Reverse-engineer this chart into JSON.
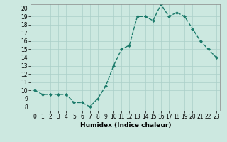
{
  "x": [
    0,
    1,
    2,
    3,
    4,
    5,
    6,
    7,
    8,
    9,
    10,
    11,
    12,
    13,
    14,
    15,
    16,
    17,
    18,
    19,
    20,
    21,
    22,
    23
  ],
  "y": [
    10,
    9.5,
    9.5,
    9.5,
    9.5,
    8.5,
    8.5,
    8.0,
    9.0,
    10.5,
    13.0,
    15.0,
    15.5,
    19.0,
    19.0,
    18.5,
    20.5,
    19.0,
    19.5,
    19.0,
    17.5,
    16.0,
    15.0,
    14.0
  ],
  "line_color": "#1a7a6a",
  "marker": "D",
  "marker_size": 2,
  "line_width": 1.0,
  "bg_color": "#cce8e0",
  "grid_color": "#aacfc8",
  "xlabel": "Humidex (Indice chaleur)",
  "xlim": [
    -0.5,
    23.5
  ],
  "ylim": [
    7.5,
    20.5
  ],
  "xticks": [
    0,
    1,
    2,
    3,
    4,
    5,
    6,
    7,
    8,
    9,
    10,
    11,
    12,
    13,
    14,
    15,
    16,
    17,
    18,
    19,
    20,
    21,
    22,
    23
  ],
  "yticks": [
    8,
    9,
    10,
    11,
    12,
    13,
    14,
    15,
    16,
    17,
    18,
    19,
    20
  ],
  "tick_fontsize": 5.5,
  "label_fontsize": 6.5
}
